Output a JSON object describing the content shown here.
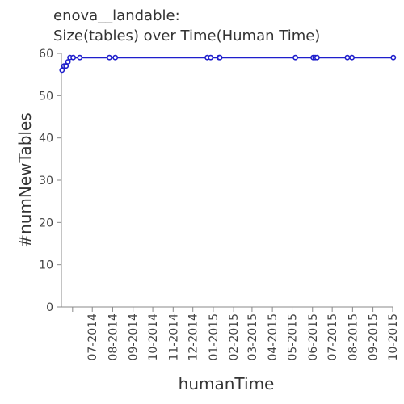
{
  "chart_data": {
    "type": "line",
    "title_lines": [
      "enova__landable:",
      "Size(tables) over Time(Human Time)"
    ],
    "xlabel": "humanTime",
    "ylabel": "#numNewTables",
    "ylim": [
      0,
      60
    ],
    "yticks": [
      0,
      10,
      20,
      30,
      40,
      50,
      60
    ],
    "xlim": [
      "2014-05-15",
      "2015-10-01"
    ],
    "xticks": [
      {
        "date": "2014-06-01",
        "label": ""
      },
      {
        "date": "2014-07-01",
        "label": "07-2014"
      },
      {
        "date": "2014-08-01",
        "label": "08-2014"
      },
      {
        "date": "2014-09-01",
        "label": "09-2014"
      },
      {
        "date": "2014-10-01",
        "label": "10-2014"
      },
      {
        "date": "2014-11-01",
        "label": "11-2014"
      },
      {
        "date": "2014-12-01",
        "label": "12-2014"
      },
      {
        "date": "2015-01-01",
        "label": "01-2015"
      },
      {
        "date": "2015-02-01",
        "label": "02-2015"
      },
      {
        "date": "2015-03-01",
        "label": "03-2015"
      },
      {
        "date": "2015-04-01",
        "label": "04-2015"
      },
      {
        "date": "2015-05-01",
        "label": "05-2015"
      },
      {
        "date": "2015-06-01",
        "label": "06-2015"
      },
      {
        "date": "2015-07-01",
        "label": "07-2015"
      },
      {
        "date": "2015-08-01",
        "label": "08-2015"
      },
      {
        "date": "2015-09-01",
        "label": "09-2015"
      },
      {
        "date": "2015-10-01",
        "label": "10-2015"
      }
    ],
    "grid": false,
    "series": [
      {
        "color": "#1f1fcc",
        "points": [
          {
            "x": "2014-05-16",
            "y": 56
          },
          {
            "x": "2014-05-19",
            "y": 57
          },
          {
            "x": "2014-05-22",
            "y": 57
          },
          {
            "x": "2014-05-25",
            "y": 58
          },
          {
            "x": "2014-05-28",
            "y": 59
          },
          {
            "x": "2014-06-02",
            "y": 59
          },
          {
            "x": "2014-06-12",
            "y": 59
          },
          {
            "x": "2014-07-27",
            "y": 59
          },
          {
            "x": "2014-08-05",
            "y": 59
          },
          {
            "x": "2014-12-23",
            "y": 59
          },
          {
            "x": "2014-12-28",
            "y": 59
          },
          {
            "x": "2015-01-10",
            "y": 59
          },
          {
            "x": "2015-01-11",
            "y": 59
          },
          {
            "x": "2015-05-06",
            "y": 59
          },
          {
            "x": "2015-06-02",
            "y": 59
          },
          {
            "x": "2015-06-05",
            "y": 59
          },
          {
            "x": "2015-06-08",
            "y": 59
          },
          {
            "x": "2015-07-24",
            "y": 59
          },
          {
            "x": "2015-07-31",
            "y": 59
          },
          {
            "x": "2015-10-02",
            "y": 59
          }
        ]
      }
    ]
  }
}
